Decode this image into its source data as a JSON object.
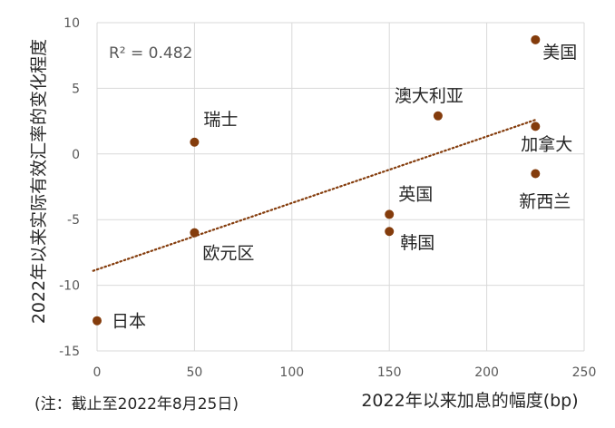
{
  "chart_data": {
    "type": "scatter",
    "xlabel": "2022年以来加息的幅度(bp)",
    "ylabel": "2022年以来实际有效汇率的变化程度",
    "xlim": [
      0,
      250
    ],
    "ylim": [
      -15,
      10
    ],
    "x_ticks": [
      "0",
      "50",
      "100",
      "150",
      "200",
      "250"
    ],
    "y_ticks": [
      "10",
      "5",
      "0",
      "-5",
      "-10",
      "-15"
    ],
    "grid": true,
    "point_color": "#843c0c",
    "trend_color": "#843c0c",
    "points": [
      {
        "label": "美国",
        "x": 225,
        "y": 8.7
      },
      {
        "label": "澳大利亚",
        "x": 175,
        "y": 2.9
      },
      {
        "label": "加拿大",
        "x": 225,
        "y": 2.1
      },
      {
        "label": "瑞士",
        "x": 50,
        "y": 0.9
      },
      {
        "label": "新西兰",
        "x": 225,
        "y": -1.5
      },
      {
        "label": "英国",
        "x": 150,
        "y": -4.6
      },
      {
        "label": "欧元区",
        "x": 50,
        "y": -6.0
      },
      {
        "label": "韩国",
        "x": 150,
        "y": -5.9
      },
      {
        "label": "日本",
        "x": 0,
        "y": -12.7
      }
    ],
    "trendline": {
      "x": [
        -2,
        225
      ],
      "y": [
        -8.9,
        2.6
      ]
    },
    "annotation": "R² = 0.482",
    "note": "(注：截止至2022年8月25日)"
  }
}
